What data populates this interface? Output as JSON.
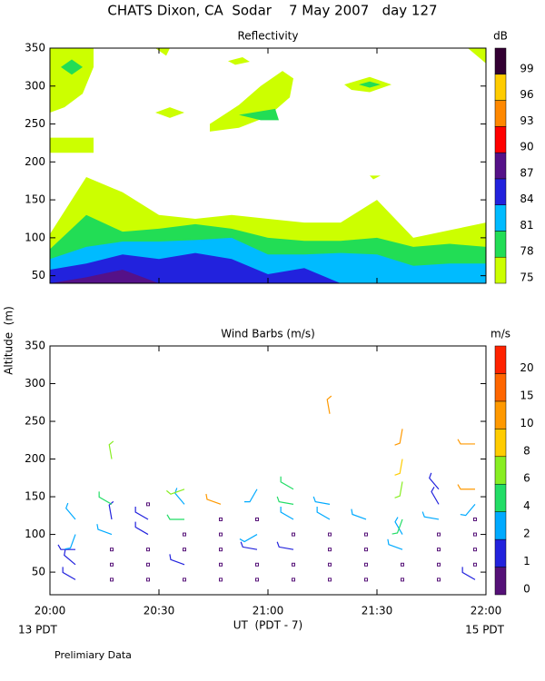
{
  "title": "CHATS Dixon, CA  Sodar    7 May 2007   day 127",
  "xlabel": "UT  (PDT - 7)",
  "ylabel": "Altitude  (m)",
  "start_label": "13 PDT",
  "end_label": "15 PDT",
  "note": "Prelimiary Data",
  "chart_data": [
    {
      "type": "contour",
      "title": "Reflectivity",
      "colorbar_label": "dB",
      "levels": [
        75,
        78,
        81,
        84,
        87,
        90,
        93,
        96,
        99
      ],
      "colors": [
        "#ccff00",
        "#22dd55",
        "#00bbff",
        "#2222dd",
        "#551188",
        "#ff0000",
        "#ff8800",
        "#ffcc00",
        "#330033"
      ],
      "xlim": [
        0,
        120
      ],
      "xticks": [
        0,
        30,
        60,
        90,
        120
      ],
      "ylim": [
        40,
        350
      ],
      "yticks": [
        50,
        100,
        150,
        200,
        250,
        300,
        350
      ],
      "bands": [
        {
          "level": 75,
          "x": [
            0,
            10,
            20,
            30,
            40,
            50,
            60,
            70,
            80,
            90,
            100,
            110,
            120
          ],
          "values": [
            105,
            180,
            160,
            130,
            125,
            130,
            125,
            120,
            120,
            150,
            100,
            110,
            120
          ]
        },
        {
          "level": 78,
          "x": [
            0,
            10,
            20,
            30,
            40,
            50,
            60,
            70,
            80,
            90,
            100,
            110,
            120
          ],
          "values": [
            85,
            130,
            108,
            112,
            118,
            112,
            100,
            96,
            96,
            100,
            88,
            92,
            88
          ]
        },
        {
          "level": 81,
          "x": [
            0,
            10,
            20,
            30,
            40,
            50,
            60,
            70,
            80,
            90,
            100,
            110,
            120
          ],
          "values": [
            72,
            88,
            95,
            95,
            97,
            100,
            78,
            78,
            80,
            78,
            63,
            66,
            66
          ]
        },
        {
          "level": 84,
          "x": [
            0,
            10,
            20,
            30,
            40,
            50,
            60,
            70,
            80,
            90,
            100,
            110,
            120
          ],
          "values": [
            58,
            66,
            78,
            72,
            80,
            72,
            52,
            60,
            40,
            40,
            40,
            40,
            40
          ]
        },
        {
          "level": 87,
          "x": [
            0,
            10,
            20,
            30,
            40,
            50,
            60,
            70,
            80,
            90,
            100,
            110,
            120
          ],
          "values": [
            40,
            48,
            58,
            40,
            40,
            40,
            40,
            40,
            40,
            40,
            40,
            40,
            40
          ]
        }
      ],
      "patches": [
        {
          "level": 75,
          "x": [
            0,
            12,
            12,
            9,
            4,
            0
          ],
          "values": [
            350,
            350,
            325,
            290,
            272,
            265
          ]
        },
        {
          "level": 78,
          "x": [
            3,
            6,
            9,
            6
          ],
          "values": [
            325,
            335,
            325,
            315
          ]
        },
        {
          "level": 75,
          "x": [
            0,
            12,
            12,
            0
          ],
          "values": [
            232,
            232,
            212,
            212
          ]
        },
        {
          "level": 75,
          "x": [
            44,
            52,
            58,
            64,
            67,
            66,
            60,
            52,
            44
          ],
          "values": [
            250,
            275,
            300,
            320,
            310,
            285,
            260,
            245,
            240
          ]
        },
        {
          "level": 78,
          "x": [
            52,
            62,
            63,
            58
          ],
          "values": [
            262,
            270,
            255,
            255
          ]
        },
        {
          "level": 75,
          "x": [
            29,
            33,
            37,
            33
          ],
          "values": [
            265,
            272,
            265,
            258
          ]
        },
        {
          "level": 75,
          "x": [
            49,
            53,
            55,
            51
          ],
          "values": [
            333,
            338,
            332,
            328
          ]
        },
        {
          "level": 75,
          "x": [
            81,
            88,
            94,
            88,
            83
          ],
          "values": [
            302,
            312,
            302,
            292,
            295
          ]
        },
        {
          "level": 78,
          "x": [
            85,
            88,
            91,
            88
          ],
          "values": [
            302,
            306,
            302,
            298
          ]
        },
        {
          "level": 75,
          "x": [
            115,
            120,
            120
          ],
          "values": [
            350,
            350,
            330
          ]
        },
        {
          "level": 75,
          "x": [
            29,
            33,
            32
          ],
          "values": [
            350,
            350,
            340
          ]
        },
        {
          "level": 75,
          "x": [
            88,
            91,
            89
          ],
          "values": [
            182,
            182,
            177
          ]
        }
      ]
    },
    {
      "type": "barbs",
      "title": "Wind Barbs (m/s)",
      "colorbar_label": "m/s",
      "levels": [
        0,
        1,
        2,
        4,
        6,
        8,
        10,
        15,
        20
      ],
      "colors": [
        "#551177",
        "#2222dd",
        "#00aaff",
        "#22dd66",
        "#88ee22",
        "#ffcc00",
        "#ff9900",
        "#ff6600",
        "#ff2200"
      ],
      "xlim": [
        0,
        120
      ],
      "xticks": [
        {
          "value": 0,
          "label": "20:00"
        },
        {
          "value": 30,
          "label": "20:30"
        },
        {
          "value": 60,
          "label": "21:00"
        },
        {
          "value": 90,
          "label": "21:30"
        },
        {
          "value": 120,
          "label": "22:00"
        }
      ],
      "ylim": [
        20,
        350
      ],
      "yticks": [
        50,
        100,
        150,
        200,
        250,
        300,
        350
      ],
      "barbs": [
        {
          "x": 7,
          "height": 40,
          "speed": 1.5,
          "direction": 300
        },
        {
          "x": 7,
          "height": 60,
          "speed": 1.5,
          "direction": 310
        },
        {
          "x": 7,
          "height": 80,
          "speed": 1.5,
          "direction": 270
        },
        {
          "x": 7,
          "height": 100,
          "speed": 2.5,
          "direction": 200
        },
        {
          "x": 7,
          "height": 120,
          "speed": 2.5,
          "direction": 320
        },
        {
          "x": 17,
          "height": 40,
          "speed": 0,
          "direction": 0
        },
        {
          "x": 17,
          "height": 60,
          "speed": 0,
          "direction": 0
        },
        {
          "x": 17,
          "height": 80,
          "speed": 0,
          "direction": 0
        },
        {
          "x": 17,
          "height": 100,
          "speed": 2.5,
          "direction": 290
        },
        {
          "x": 17,
          "height": 120,
          "speed": 1.5,
          "direction": 350
        },
        {
          "x": 17,
          "height": 140,
          "speed": 4.5,
          "direction": 300
        },
        {
          "x": 17,
          "height": 200,
          "speed": 6.5,
          "direction": 350
        },
        {
          "x": 27,
          "height": 40,
          "speed": 0,
          "direction": 0
        },
        {
          "x": 27,
          "height": 60,
          "speed": 0,
          "direction": 0
        },
        {
          "x": 27,
          "height": 80,
          "speed": 0,
          "direction": 0
        },
        {
          "x": 27,
          "height": 100,
          "speed": 1.5,
          "direction": 300
        },
        {
          "x": 27,
          "height": 120,
          "speed": 1.5,
          "direction": 300
        },
        {
          "x": 27,
          "height": 140,
          "speed": 0,
          "direction": 0
        },
        {
          "x": 37,
          "height": 40,
          "speed": 0,
          "direction": 0
        },
        {
          "x": 37,
          "height": 60,
          "speed": 1.5,
          "direction": 290
        },
        {
          "x": 37,
          "height": 80,
          "speed": 0,
          "direction": 0
        },
        {
          "x": 37,
          "height": 100,
          "speed": 0,
          "direction": 0
        },
        {
          "x": 37,
          "height": 120,
          "speed": 4.5,
          "direction": 270
        },
        {
          "x": 37,
          "height": 140,
          "speed": 3,
          "direction": 320
        },
        {
          "x": 37,
          "height": 160,
          "speed": 6.5,
          "direction": 250
        },
        {
          "x": 47,
          "height": 40,
          "speed": 0,
          "direction": 0
        },
        {
          "x": 47,
          "height": 60,
          "speed": 0,
          "direction": 0
        },
        {
          "x": 47,
          "height": 80,
          "speed": 0,
          "direction": 0
        },
        {
          "x": 47,
          "height": 100,
          "speed": 0,
          "direction": 0
        },
        {
          "x": 47,
          "height": 120,
          "speed": 0,
          "direction": 0
        },
        {
          "x": 47,
          "height": 140,
          "speed": 12,
          "direction": 290
        },
        {
          "x": 57,
          "height": 40,
          "speed": 0,
          "direction": 0
        },
        {
          "x": 57,
          "height": 60,
          "speed": 0,
          "direction": 0
        },
        {
          "x": 57,
          "height": 80,
          "speed": 1.5,
          "direction": 280
        },
        {
          "x": 57,
          "height": 100,
          "speed": 3,
          "direction": 240
        },
        {
          "x": 57,
          "height": 120,
          "speed": 0,
          "direction": 0
        },
        {
          "x": 57,
          "height": 160,
          "speed": 3,
          "direction": 210
        },
        {
          "x": 67,
          "height": 40,
          "speed": 0,
          "direction": 0
        },
        {
          "x": 67,
          "height": 60,
          "speed": 0,
          "direction": 0
        },
        {
          "x": 67,
          "height": 80,
          "speed": 1.5,
          "direction": 280
        },
        {
          "x": 67,
          "height": 100,
          "speed": 0,
          "direction": 0
        },
        {
          "x": 67,
          "height": 120,
          "speed": 3,
          "direction": 300
        },
        {
          "x": 67,
          "height": 140,
          "speed": 4.5,
          "direction": 280
        },
        {
          "x": 67,
          "height": 160,
          "speed": 5,
          "direction": 300
        },
        {
          "x": 77,
          "height": 40,
          "speed": 0,
          "direction": 0
        },
        {
          "x": 77,
          "height": 60,
          "speed": 0,
          "direction": 0
        },
        {
          "x": 77,
          "height": 80,
          "speed": 0,
          "direction": 0
        },
        {
          "x": 77,
          "height": 100,
          "speed": 0,
          "direction": 0
        },
        {
          "x": 77,
          "height": 120,
          "speed": 3,
          "direction": 300
        },
        {
          "x": 77,
          "height": 140,
          "speed": 3,
          "direction": 280
        },
        {
          "x": 77,
          "height": 260,
          "speed": 12,
          "direction": 350
        },
        {
          "x": 87,
          "height": 40,
          "speed": 0,
          "direction": 0
        },
        {
          "x": 87,
          "height": 60,
          "speed": 0,
          "direction": 0
        },
        {
          "x": 87,
          "height": 80,
          "speed": 0,
          "direction": 0
        },
        {
          "x": 87,
          "height": 100,
          "speed": 0,
          "direction": 0
        },
        {
          "x": 87,
          "height": 120,
          "speed": 2.5,
          "direction": 290
        },
        {
          "x": 97,
          "height": 40,
          "speed": 0,
          "direction": 0
        },
        {
          "x": 97,
          "height": 60,
          "speed": 0,
          "direction": 0
        },
        {
          "x": 97,
          "height": 80,
          "speed": 2.5,
          "direction": 290
        },
        {
          "x": 97,
          "height": 100,
          "speed": 2.5,
          "direction": 330
        },
        {
          "x": 97,
          "height": 120,
          "speed": 4.5,
          "direction": 200
        },
        {
          "x": 97,
          "height": 170,
          "speed": 7,
          "direction": 190
        },
        {
          "x": 97,
          "height": 200,
          "speed": 9,
          "direction": 190
        },
        {
          "x": 97,
          "height": 240,
          "speed": 12,
          "direction": 190
        },
        {
          "x": 107,
          "height": 40,
          "speed": 0,
          "direction": 0
        },
        {
          "x": 107,
          "height": 60,
          "speed": 0,
          "direction": 0
        },
        {
          "x": 107,
          "height": 80,
          "speed": 0,
          "direction": 0
        },
        {
          "x": 107,
          "height": 100,
          "speed": 0,
          "direction": 0
        },
        {
          "x": 107,
          "height": 120,
          "speed": 2.5,
          "direction": 280
        },
        {
          "x": 107,
          "height": 140,
          "speed": 1.5,
          "direction": 330
        },
        {
          "x": 107,
          "height": 160,
          "speed": 1.5,
          "direction": 320
        },
        {
          "x": 117,
          "height": 40,
          "speed": 1.5,
          "direction": 300
        },
        {
          "x": 117,
          "height": 60,
          "speed": 0,
          "direction": 0
        },
        {
          "x": 117,
          "height": 80,
          "speed": 0,
          "direction": 0
        },
        {
          "x": 117,
          "height": 100,
          "speed": 0,
          "direction": 0
        },
        {
          "x": 117,
          "height": 120,
          "speed": 0,
          "direction": 0
        },
        {
          "x": 117,
          "height": 140,
          "speed": 2.5,
          "direction": 220
        },
        {
          "x": 117,
          "height": 160,
          "speed": 13,
          "direction": 270
        },
        {
          "x": 117,
          "height": 220,
          "speed": 14,
          "direction": 270
        }
      ]
    }
  ]
}
